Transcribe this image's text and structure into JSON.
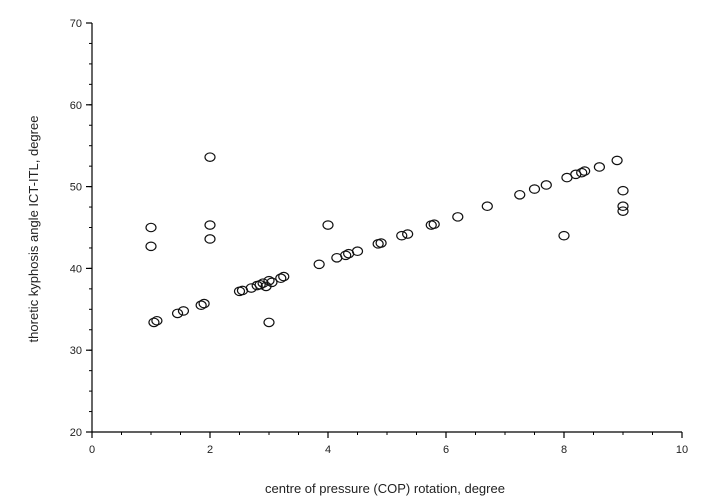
{
  "chart_data": {
    "type": "scatter",
    "xlabel": "centre of pressure (COP) rotation, degree",
    "ylabel": "thoretic kyphosis angle ICT-ITL, degree",
    "xlim": [
      0,
      10
    ],
    "ylim": [
      20,
      70
    ],
    "x_ticks": [
      "0",
      "2",
      "4",
      "6",
      "8",
      "10"
    ],
    "y_ticks": [
      "20",
      "30",
      "40",
      "50",
      "60",
      "70"
    ],
    "grid": false,
    "marker": "open-circle",
    "x": [
      1.0,
      1.0,
      1.05,
      1.1,
      1.45,
      1.55,
      1.85,
      1.9,
      2.0,
      2.0,
      2.0,
      2.5,
      2.55,
      2.7,
      2.8,
      2.85,
      2.9,
      2.95,
      3.0,
      3.0,
      3.05,
      3.2,
      3.25,
      3.85,
      4.0,
      4.15,
      4.3,
      4.35,
      4.5,
      4.85,
      4.9,
      5.25,
      5.35,
      5.75,
      5.8,
      6.2,
      6.7,
      7.25,
      7.5,
      7.7,
      8.0,
      8.05,
      8.2,
      8.3,
      8.35,
      8.6,
      8.9,
      9.0,
      9.0,
      9.0
    ],
    "y": [
      45.0,
      42.7,
      33.4,
      33.6,
      34.5,
      34.8,
      35.5,
      35.7,
      53.6,
      45.3,
      43.6,
      37.2,
      37.3,
      37.6,
      37.9,
      38.0,
      38.2,
      37.8,
      38.5,
      33.4,
      38.3,
      38.8,
      39.0,
      40.5,
      45.3,
      41.3,
      41.6,
      41.8,
      42.1,
      43.0,
      43.1,
      44.0,
      44.2,
      45.3,
      45.4,
      46.3,
      47.6,
      49.0,
      49.7,
      50.2,
      44.0,
      51.1,
      51.5,
      51.7,
      51.9,
      52.4,
      53.2,
      49.5,
      47.6,
      47.0
    ]
  }
}
